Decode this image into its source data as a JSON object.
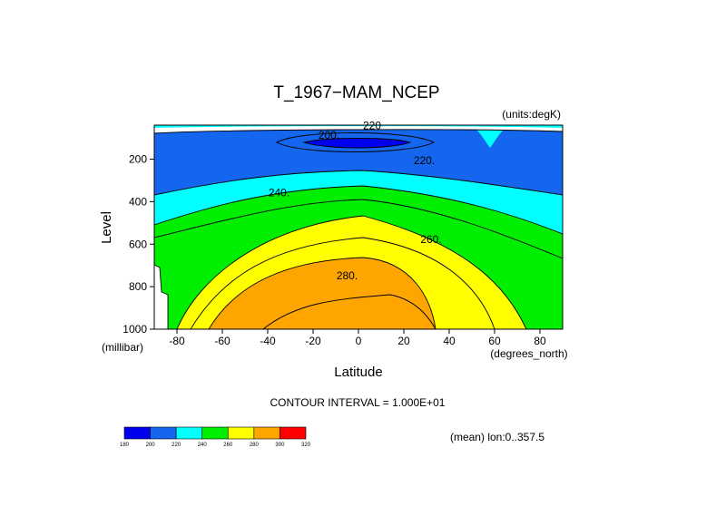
{
  "chart_data": {
    "type": "heatmap",
    "title": "T_1967−MAM_NCEP",
    "units_label": "(units:degK)",
    "ylabel": "Level",
    "y_unit_label": "(millibar)",
    "xlabel": "Latitude",
    "x_unit_label": "(degrees_north)",
    "xlim": [
      -90,
      90
    ],
    "ylim": [
      1000,
      40
    ],
    "x_ticks": [
      -80,
      -60,
      -40,
      -20,
      0,
      20,
      40,
      60,
      80
    ],
    "y_ticks": [
      200,
      400,
      600,
      800,
      1000
    ],
    "contour_interval_text": "CONTOUR INTERVAL = 1.000E+01",
    "footer_note": "(mean) lon:0..357.5",
    "contour_labels": [
      {
        "text": "220",
        "lat": 6,
        "level": 55
      },
      {
        "text": "200.",
        "lat": -13,
        "level": 100
      },
      {
        "text": "220.",
        "lat": 29,
        "level": 220
      },
      {
        "text": "240.",
        "lat": -35,
        "level": 370
      },
      {
        "text": "260.",
        "lat": 32,
        "level": 590
      },
      {
        "text": "280.",
        "lat": -5,
        "level": 760
      }
    ],
    "colorbar": {
      "labels": [
        "180",
        "200",
        "220",
        "240",
        "260",
        "280",
        "300",
        "320"
      ],
      "colors": [
        "#0000ee",
        "#1466ee",
        "#00ffff",
        "#00ee00",
        "#ffff00",
        "#ffa500",
        "#ff0000"
      ]
    }
  }
}
